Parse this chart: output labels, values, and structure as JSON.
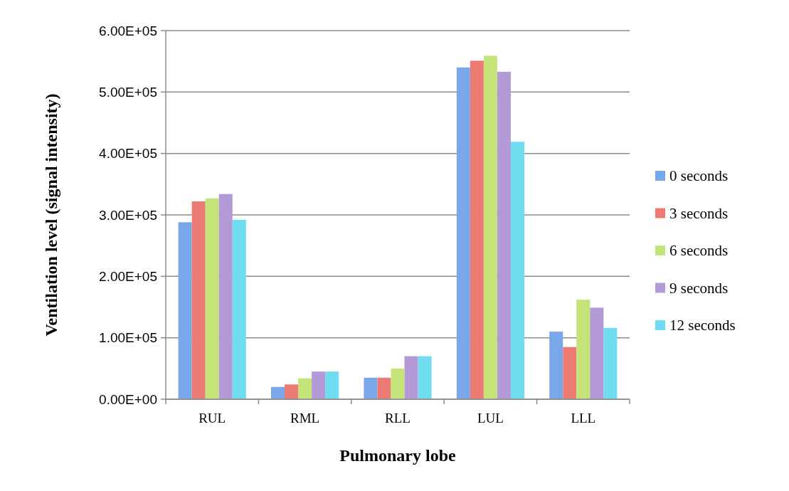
{
  "chart_data": {
    "type": "bar",
    "xlabel": "Pulmonary lobe",
    "ylabel": "Ventilation level (signal intensity)",
    "categories": [
      "RUL",
      "RML",
      "RLL",
      "LUL",
      "LLL"
    ],
    "series": [
      {
        "name": "0 seconds",
        "color": "#7aa7ea",
        "values": [
          288000,
          20000,
          35000,
          540000,
          110000
        ]
      },
      {
        "name": "3 seconds",
        "color": "#ec7b73",
        "values": [
          322000,
          24000,
          35000,
          551000,
          85000
        ]
      },
      {
        "name": "6 seconds",
        "color": "#c4e47a",
        "values": [
          327000,
          34000,
          50000,
          559000,
          162000
        ]
      },
      {
        "name": "9 seconds",
        "color": "#b39ad6",
        "values": [
          334000,
          45000,
          70000,
          533000,
          149000
        ]
      },
      {
        "name": "12 seconds",
        "color": "#6fdcf0",
        "values": [
          292000,
          45000,
          70000,
          419000,
          116000
        ]
      }
    ],
    "ylim": [
      0,
      600000
    ],
    "yticks": [
      {
        "value": 0,
        "label": "0.00E+00"
      },
      {
        "value": 100000,
        "label": "1.00E+05"
      },
      {
        "value": 200000,
        "label": "2.00E+05"
      },
      {
        "value": 300000,
        "label": "3.00E+05"
      },
      {
        "value": 400000,
        "label": "4.00E+05"
      },
      {
        "value": 500000,
        "label": "5.00E+05"
      },
      {
        "value": 600000,
        "label": "6.00E+05"
      }
    ],
    "grid": "y",
    "legend": "right"
  }
}
